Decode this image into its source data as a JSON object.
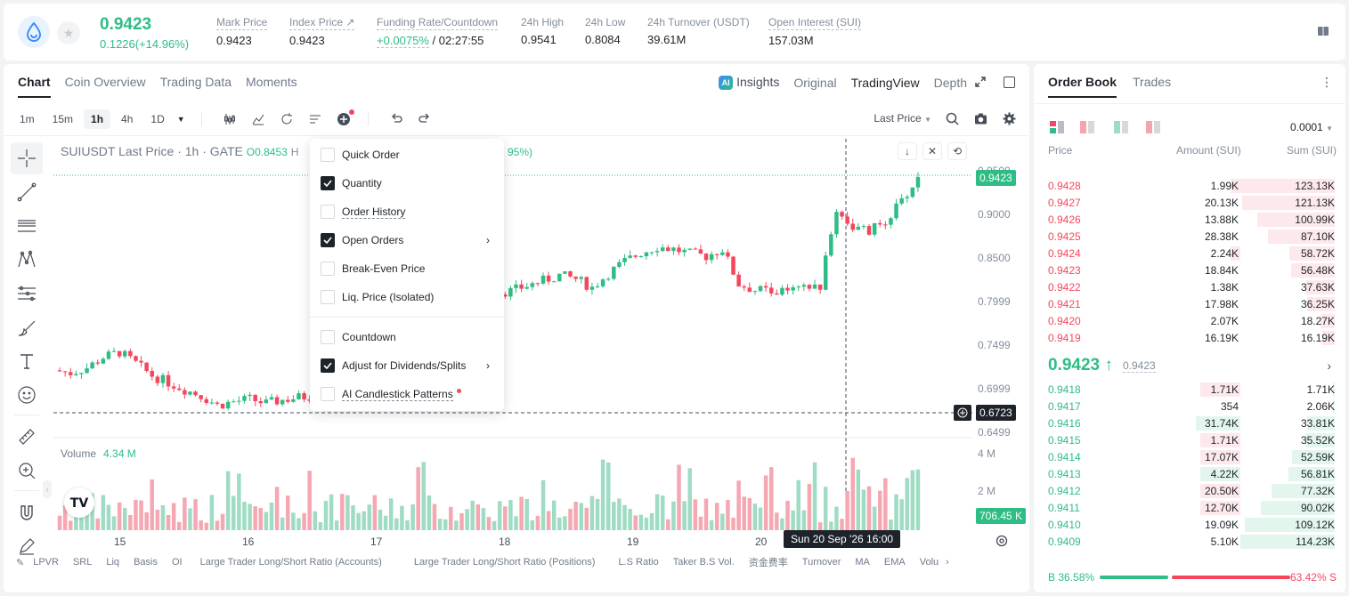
{
  "ticker": {
    "symbol_icon": "sui-drop-icon",
    "last_price": "0.9423",
    "change": "0.1226(+14.96%)",
    "stats": [
      {
        "label": "Mark Price",
        "value": "0.9423"
      },
      {
        "label": "Index Price ↗",
        "value": "0.9423"
      },
      {
        "label": "Funding Rate/Countdown",
        "value_green": "+0.0075%",
        "value": "/ 02:27:55"
      },
      {
        "label": "24h High",
        "value": "0.9541"
      },
      {
        "label": "24h Low",
        "value": "0.8084"
      },
      {
        "label": "24h Turnover (USDT)",
        "value": "39.61M"
      },
      {
        "label": "Open Interest (SUI)",
        "value": "157.03M"
      }
    ]
  },
  "chart_panel": {
    "tabs": [
      "Chart",
      "Coin Overview",
      "Trading Data",
      "Moments"
    ],
    "views": {
      "insights": "Insights",
      "original": "Original",
      "tradingview": "TradingView",
      "depth": "Depth"
    },
    "timeframes": [
      "1m",
      "15m",
      "1h",
      "4h",
      "1D"
    ],
    "active_timeframe": "1h",
    "price_type": "Last Price",
    "legend": "SUIUSDT Last Price · 1h · GATE",
    "legend_open": "O0.8453",
    "legend_h": "H",
    "legend_pct": "95%)",
    "y_axis": [
      "0.9500",
      "0.9000",
      "0.8500",
      "0.7999",
      "0.7499",
      "0.6999",
      "0.6499"
    ],
    "price_tag_current": "0.9423",
    "price_tag_cursor": "0.6723",
    "volume_label": "Volume",
    "volume_value": "4.34 M",
    "vol_axis": [
      "4 M",
      "2 M"
    ],
    "vol_tag": "706.45 K",
    "x_axis": [
      "15",
      "16",
      "17",
      "18",
      "19",
      "20"
    ],
    "cursor_time": "Sun 20 Sep '26   16:00",
    "indicators": [
      "LPVR",
      "SRL",
      "Liq",
      "Basis",
      "OI",
      "Large Trader Long/Short Ratio (Accounts)",
      "Large Trader Long/Short Ratio (Positions)",
      "L.S Ratio",
      "Taker B.S Vol.",
      "资金费率",
      "Turnover",
      "MA",
      "EMA",
      "Volu"
    ],
    "colors": {
      "up": "#2ebd85",
      "down": "#f6465d",
      "up_vol": "#9fdcc3",
      "down_vol": "#f5a7b2"
    }
  },
  "popup_menu": {
    "items": [
      {
        "label": "Quick Order",
        "checked": false,
        "submenu": false,
        "underline": false
      },
      {
        "label": "Quantity",
        "checked": true,
        "submenu": false,
        "underline": false
      },
      {
        "label": "Order History",
        "checked": false,
        "submenu": false,
        "underline": true
      },
      {
        "label": "Open Orders",
        "checked": true,
        "submenu": true,
        "underline": false
      },
      {
        "label": "Break-Even Price",
        "checked": false,
        "submenu": false,
        "underline": false
      },
      {
        "label": "Liq. Price (Isolated)",
        "checked": false,
        "submenu": false,
        "underline": false
      },
      {
        "label": "Countdown",
        "checked": false,
        "submenu": false,
        "underline": false
      },
      {
        "label": "Adjust for Dividends/Splits",
        "checked": true,
        "submenu": true,
        "underline": false
      },
      {
        "label": "AI Candlestick Patterns",
        "checked": false,
        "submenu": false,
        "underline": true,
        "dot": true
      }
    ]
  },
  "orderbook": {
    "tabs": [
      "Order Book",
      "Trades"
    ],
    "precision": "0.0001",
    "headers": {
      "price": "Price",
      "amount": "Amount (SUI)",
      "sum": "Sum (SUI)"
    },
    "asks": [
      {
        "price": "0.9428",
        "amount": "1.99K",
        "sum": "123.13K",
        "depth": 1.0,
        "hl": 0.12
      },
      {
        "price": "0.9427",
        "amount": "20.13K",
        "sum": "121.13K",
        "depth": 0.98,
        "hl": 0
      },
      {
        "price": "0.9426",
        "amount": "13.88K",
        "sum": "100.99K",
        "depth": 0.82,
        "hl": 0
      },
      {
        "price": "0.9425",
        "amount": "28.38K",
        "sum": "87.10K",
        "depth": 0.71,
        "hl": 0
      },
      {
        "price": "0.9424",
        "amount": "2.24K",
        "sum": "58.72K",
        "depth": 0.48,
        "hl": 0.12
      },
      {
        "price": "0.9423",
        "amount": "18.84K",
        "sum": "56.48K",
        "depth": 0.46,
        "hl": 0
      },
      {
        "price": "0.9422",
        "amount": "1.38K",
        "sum": "37.63K",
        "depth": 0.31,
        "hl": 0
      },
      {
        "price": "0.9421",
        "amount": "17.98K",
        "sum": "36.25K",
        "depth": 0.29,
        "hl": 0
      },
      {
        "price": "0.9420",
        "amount": "2.07K",
        "sum": "18.27K",
        "depth": 0.15,
        "hl": 0
      },
      {
        "price": "0.9419",
        "amount": "16.19K",
        "sum": "16.19K",
        "depth": 0.13,
        "hl": 0
      }
    ],
    "mid_price": "0.9423 ↑",
    "mid_mark": "0.9423",
    "bids": [
      {
        "price": "0.9418",
        "amount": "1.71K",
        "sum": "1.71K",
        "depth": 0.02,
        "hl": 0.5,
        "hl_red": true
      },
      {
        "price": "0.9417",
        "amount": "354",
        "sum": "2.06K",
        "depth": 0.02,
        "hl": 0
      },
      {
        "price": "0.9416",
        "amount": "31.74K",
        "sum": "33.81K",
        "depth": 0.29,
        "hl": 0.55
      },
      {
        "price": "0.9415",
        "amount": "1.71K",
        "sum": "35.52K",
        "depth": 0.31,
        "hl": 0.5,
        "hl_red": true
      },
      {
        "price": "0.9414",
        "amount": "17.07K",
        "sum": "52.59K",
        "depth": 0.45,
        "hl": 0.5,
        "hl_red": true
      },
      {
        "price": "0.9413",
        "amount": "4.22K",
        "sum": "56.81K",
        "depth": 0.49,
        "hl": 0.5
      },
      {
        "price": "0.9412",
        "amount": "20.50K",
        "sum": "77.32K",
        "depth": 0.67,
        "hl": 0.5,
        "hl_red": true
      },
      {
        "price": "0.9411",
        "amount": "12.70K",
        "sum": "90.02K",
        "depth": 0.78,
        "hl": 0.5,
        "hl_red": true
      },
      {
        "price": "0.9410",
        "amount": "19.09K",
        "sum": "109.12K",
        "depth": 0.95,
        "hl": 0
      },
      {
        "price": "0.9409",
        "amount": "5.10K",
        "sum": "114.23K",
        "depth": 1.0,
        "hl": 0
      }
    ],
    "ratio": {
      "buy": "B 36.58%",
      "sell": "63.42% S",
      "buy_frac": 0.3658
    }
  },
  "chart_data": {
    "type": "candlestick",
    "symbol": "SUIUSDT",
    "interval": "1h",
    "x_ticks": [
      "15",
      "16",
      "17",
      "18",
      "19",
      "20"
    ],
    "ylim": [
      0.6499,
      0.95
    ],
    "close_path": [
      0.721,
      0.718,
      0.724,
      0.736,
      0.742,
      0.729,
      0.715,
      0.707,
      0.699,
      0.692,
      0.681,
      0.685,
      0.688,
      0.683,
      0.687,
      0.69,
      0.692,
      0.696,
      0.701,
      0.71,
      0.724,
      0.748,
      0.77,
      0.782,
      0.783,
      0.796,
      0.804,
      0.81,
      0.812,
      0.818,
      0.824,
      0.83,
      0.826,
      0.816,
      0.832,
      0.846,
      0.856,
      0.863,
      0.86,
      0.855,
      0.852,
      0.86,
      0.82,
      0.813,
      0.812,
      0.811,
      0.814,
      0.818,
      0.906,
      0.885,
      0.88,
      0.893,
      0.914,
      0.942
    ],
    "volume_max": 4.34,
    "volume_unit": "M"
  }
}
